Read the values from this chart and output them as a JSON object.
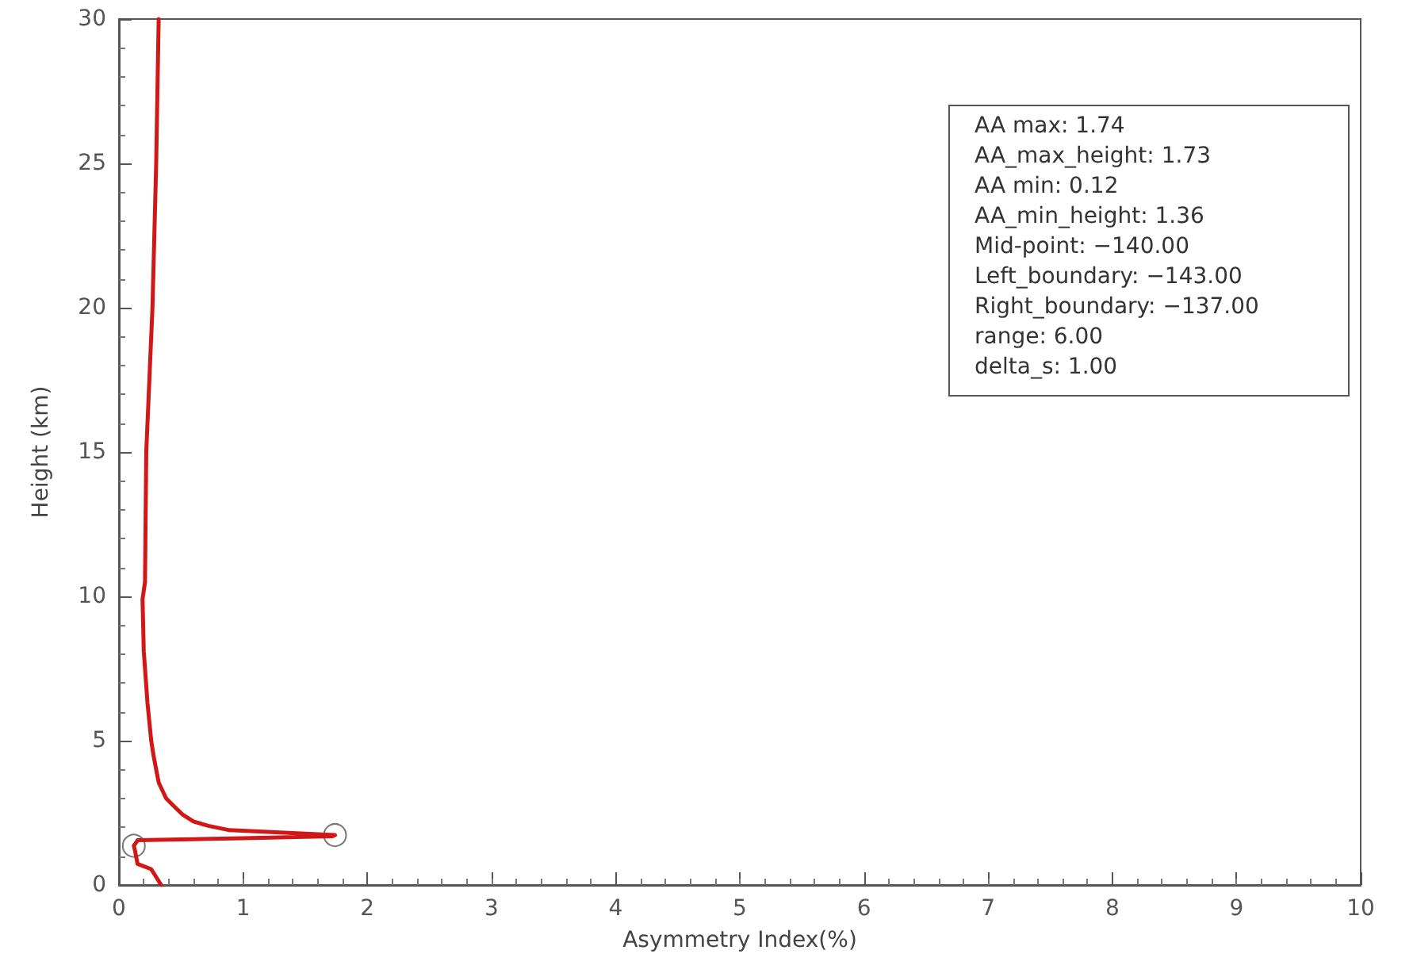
{
  "chart_data": {
    "type": "line",
    "xlabel": "Asymmetry Index(%)",
    "ylabel": "Height (km)",
    "xlim": [
      0,
      10
    ],
    "xticks": [
      0,
      1,
      2,
      3,
      4,
      5,
      6,
      7,
      8,
      9,
      10
    ],
    "ylim": [
      0,
      30
    ],
    "yticks": [
      0,
      5,
      10,
      15,
      20,
      25,
      30
    ],
    "grid": false,
    "series": [
      {
        "color": "#d01818",
        "marker": "none",
        "x": [
          0.34,
          0.26,
          0.15,
          0.13,
          0.12,
          0.15,
          1.0,
          1.72,
          1.74,
          0.89,
          0.72,
          0.6,
          0.51,
          0.45,
          0.38,
          0.32,
          0.28,
          0.26,
          0.23,
          0.2,
          0.19,
          0.21,
          0.22,
          0.27,
          0.3,
          0.32
        ],
        "values": [
          0,
          0.55,
          0.73,
          1.18,
          1.36,
          1.55,
          1.62,
          1.69,
          1.73,
          1.9,
          2.05,
          2.2,
          2.45,
          2.7,
          3.0,
          3.55,
          4.45,
          5.0,
          6.3,
          8.1,
          9.9,
          10.5,
          15,
          20,
          25,
          30
        ]
      },
      {
        "type": "scatter",
        "color": "#555555",
        "marker": "circle",
        "x": [
          0.12,
          1.74
        ],
        "values": [
          1.36,
          1.73
        ]
      }
    ],
    "annotations": [
      "AA max: 1.74",
      "AA_max_height: 1.73",
      "AA min: 0.12",
      "AA_min_height: 1.36",
      "Mid-point: −140.00",
      "Left_boundary: −143.00",
      "Right_boundary: −137.00",
      "range: 6.00",
      "delta_s: 1.00"
    ]
  }
}
